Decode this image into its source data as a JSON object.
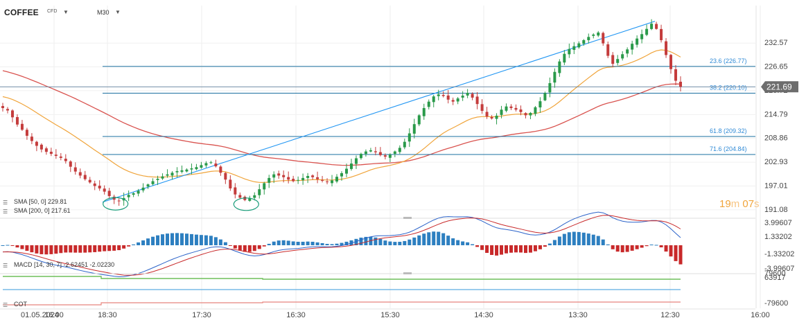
{
  "header": {
    "symbol": "COFFEE",
    "instrument_type": "CFD",
    "timeframe": "M30",
    "dropdown_icon": "caret-down-icon"
  },
  "indicators": {
    "sma50_label": "SMA [50, 0] 229.81",
    "sma200_label": "SMA [200, 0] 217.61",
    "macd_label": "MACD [14, 30, 7] -2.62451 -2.02230",
    "cot_label": "COT",
    "settings_icon": "indicator-settings-icon"
  },
  "countdown": {
    "minutes": "19",
    "m": "m",
    "seconds": "07",
    "s": "s"
  },
  "colors": {
    "up": "#2a9a4a",
    "down": "#c43c3c",
    "sma50": "#f0a43a",
    "sma200": "#d9534f",
    "trendline": "#2196f3",
    "fib": "#1a6fa0",
    "fib_label": "#2f8ad6",
    "price_badge": "#6d6d6d",
    "macd_hist_pos": "#2d7fc0",
    "macd_hist_neg": "#c8292a",
    "highlight_ellipse": "#1a9d7a",
    "cot_green": "#6fbf5a",
    "cot_blue": "#5dade2",
    "cot_red": "#e8857d"
  },
  "chart_data": [
    {
      "type": "candlestick",
      "symbol": "COFFEE",
      "timeframe": "M30",
      "x_ticks": [
        "01.05.2024",
        "16:00",
        "18:30",
        "17:30",
        "16:30",
        "15:30",
        "14:30",
        "13:30",
        "12:30",
        "16:00"
      ],
      "y_ticks": [
        232.57,
        226.65,
        220.72,
        214.79,
        208.86,
        202.93,
        197.01,
        191.08
      ],
      "ylim": [
        189.5,
        239.5
      ],
      "last_price": "221.69",
      "close_series": [
        216.4,
        215.8,
        214.1,
        212.3,
        211.0,
        209.5,
        208.2,
        207.0,
        206.1,
        205.5,
        205.0,
        204.5,
        204.0,
        203.2,
        201.8,
        200.6,
        199.6,
        198.7,
        197.9,
        197.0,
        196.4,
        195.6,
        194.5,
        193.6,
        193.2,
        194.0,
        194.8,
        195.2,
        195.8,
        196.6,
        197.4,
        198.2,
        198.8,
        199.4,
        199.9,
        200.3,
        200.7,
        200.9,
        201.1,
        201.4,
        201.7,
        202.2,
        202.7,
        202.9,
        201.9,
        200.3,
        198.6,
        196.4,
        194.9,
        194.1,
        193.5,
        194.0,
        194.7,
        196.2,
        197.7,
        199.0,
        199.9,
        199.6,
        199.2,
        198.6,
        198.2,
        198.5,
        199.0,
        199.5,
        199.2,
        198.7,
        198.3,
        198.0,
        198.4,
        199.3,
        200.2,
        201.3,
        202.6,
        203.9,
        205.0,
        205.6,
        205.9,
        205.4,
        204.7,
        204.3,
        204.8,
        205.6,
        206.5,
        208.0,
        210.1,
        212.4,
        214.6,
        216.4,
        218.0,
        219.3,
        219.8,
        219.4,
        218.5,
        218.0,
        218.8,
        219.5,
        220.2,
        219.0,
        217.4,
        215.7,
        214.3,
        213.8,
        214.5,
        216.0,
        216.8,
        216.4,
        216.0,
        215.4,
        214.6,
        215.2,
        216.6,
        218.1,
        220.1,
        222.6,
        225.4,
        228.0,
        229.9,
        231.1,
        231.8,
        232.5,
        233.3,
        234.1,
        234.7,
        235.2,
        232.5,
        229.4,
        227.4,
        228.6,
        229.8,
        231.0,
        232.4,
        233.7,
        234.8,
        236.1,
        237.4,
        236.1,
        233.3,
        229.6,
        226.1,
        223.2,
        221.7
      ],
      "trendline": {
        "from": [
          0.0,
          193.0
        ],
        "to": [
          1.0,
          238.0
        ]
      },
      "fibonacci_levels": [
        {
          "level": "23.6",
          "value": 226.77,
          "label": "23.6 (226.77)"
        },
        {
          "level": "38.2",
          "value": 220.1,
          "label": "38.2 (220.10)"
        },
        {
          "level": "61.8",
          "value": 209.32,
          "label": "61.8 (209.32)"
        },
        {
          "level": "71.6",
          "value": 204.84,
          "label": "71.6 (204.84)"
        }
      ],
      "indicators": [
        {
          "name": "SMA [50, 0]",
          "value": 229.81
        },
        {
          "name": "SMA [200, 0]",
          "value": 217.61
        }
      ]
    },
    {
      "type": "macd",
      "label": "MACD [14, 30, 7] -2.62451 -2.02230",
      "y_ticks": [
        "3.99607",
        "1.33202",
        "-1.33202",
        "-3.99607"
      ],
      "ylim": [
        -3.99607,
        3.99607
      ],
      "macd_value": -2.62451,
      "signal_value": -2.0223
    },
    {
      "type": "cot",
      "label": "COT",
      "y_ticks": [
        "79600",
        "63917",
        "-79600"
      ]
    }
  ]
}
